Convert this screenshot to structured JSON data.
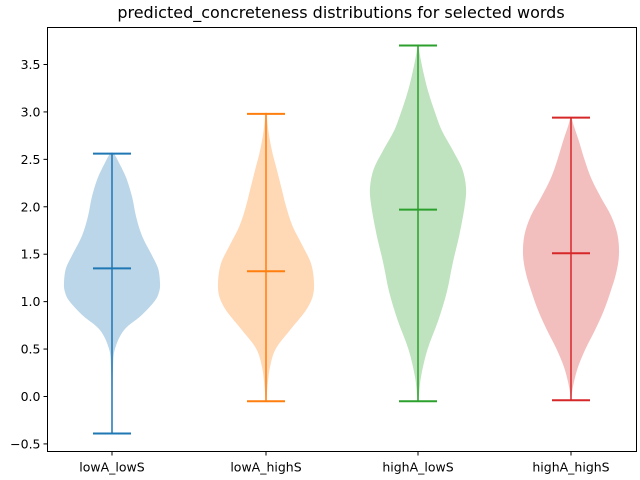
{
  "chart_data": {
    "type": "violin",
    "title": "predicted_concreteness distributions for selected words",
    "xlabel": "",
    "ylabel": "",
    "ylim": [
      -0.58,
      3.89
    ],
    "yticks": [
      -0.5,
      0.0,
      0.5,
      1.0,
      1.5,
      2.0,
      2.5,
      3.0,
      3.5
    ],
    "ytick_labels": [
      "−0.5",
      "0.0",
      "0.5",
      "1.0",
      "1.5",
      "2.0",
      "2.5",
      "3.0",
      "3.5"
    ],
    "categories": [
      "lowA_lowS",
      "lowA_highS",
      "highA_lowS",
      "highA_highS"
    ],
    "grid": false,
    "series": [
      {
        "category": "lowA_lowS",
        "color": "#1f77b4",
        "min": -0.39,
        "max": 2.56,
        "mean": 1.35,
        "profile": [
          [
            -0.39,
            0.005
          ],
          [
            0.0,
            0.01
          ],
          [
            0.3,
            0.02
          ],
          [
            0.5,
            0.06
          ],
          [
            0.7,
            0.25
          ],
          [
            0.85,
            0.6
          ],
          [
            1.0,
            0.88
          ],
          [
            1.1,
            0.98
          ],
          [
            1.2,
            1.0
          ],
          [
            1.35,
            0.96
          ],
          [
            1.5,
            0.82
          ],
          [
            1.7,
            0.62
          ],
          [
            1.9,
            0.5
          ],
          [
            2.1,
            0.42
          ],
          [
            2.3,
            0.3
          ],
          [
            2.45,
            0.16
          ],
          [
            2.56,
            0.04
          ]
        ]
      },
      {
        "category": "lowA_highS",
        "color": "#ff7f0e",
        "min": -0.05,
        "max": 2.98,
        "mean": 1.32,
        "profile": [
          [
            -0.05,
            0.01
          ],
          [
            0.1,
            0.03
          ],
          [
            0.3,
            0.08
          ],
          [
            0.5,
            0.2
          ],
          [
            0.7,
            0.5
          ],
          [
            0.9,
            0.82
          ],
          [
            1.05,
            0.97
          ],
          [
            1.2,
            1.0
          ],
          [
            1.4,
            0.94
          ],
          [
            1.6,
            0.75
          ],
          [
            1.8,
            0.55
          ],
          [
            2.0,
            0.42
          ],
          [
            2.2,
            0.32
          ],
          [
            2.4,
            0.22
          ],
          [
            2.6,
            0.12
          ],
          [
            2.8,
            0.05
          ],
          [
            2.98,
            0.01
          ]
        ]
      },
      {
        "category": "highA_lowS",
        "color": "#2ca02c",
        "min": -0.05,
        "max": 3.7,
        "mean": 1.97,
        "profile": [
          [
            -0.05,
            0.01
          ],
          [
            0.2,
            0.06
          ],
          [
            0.5,
            0.2
          ],
          [
            0.8,
            0.42
          ],
          [
            1.1,
            0.6
          ],
          [
            1.4,
            0.72
          ],
          [
            1.7,
            0.86
          ],
          [
            2.0,
            0.97
          ],
          [
            2.2,
            1.0
          ],
          [
            2.4,
            0.92
          ],
          [
            2.6,
            0.72
          ],
          [
            2.8,
            0.5
          ],
          [
            3.0,
            0.35
          ],
          [
            3.2,
            0.22
          ],
          [
            3.4,
            0.12
          ],
          [
            3.6,
            0.04
          ],
          [
            3.7,
            0.01
          ]
        ]
      },
      {
        "category": "highA_highS",
        "color": "#d62728",
        "min": -0.04,
        "max": 2.94,
        "mean": 1.51,
        "profile": [
          [
            -0.04,
            0.005
          ],
          [
            0.1,
            0.04
          ],
          [
            0.3,
            0.14
          ],
          [
            0.5,
            0.3
          ],
          [
            0.7,
            0.5
          ],
          [
            0.9,
            0.68
          ],
          [
            1.1,
            0.82
          ],
          [
            1.3,
            0.94
          ],
          [
            1.5,
            1.0
          ],
          [
            1.7,
            0.97
          ],
          [
            1.9,
            0.84
          ],
          [
            2.1,
            0.62
          ],
          [
            2.3,
            0.42
          ],
          [
            2.5,
            0.28
          ],
          [
            2.7,
            0.16
          ],
          [
            2.85,
            0.06
          ],
          [
            2.94,
            0.01
          ]
        ]
      }
    ]
  }
}
